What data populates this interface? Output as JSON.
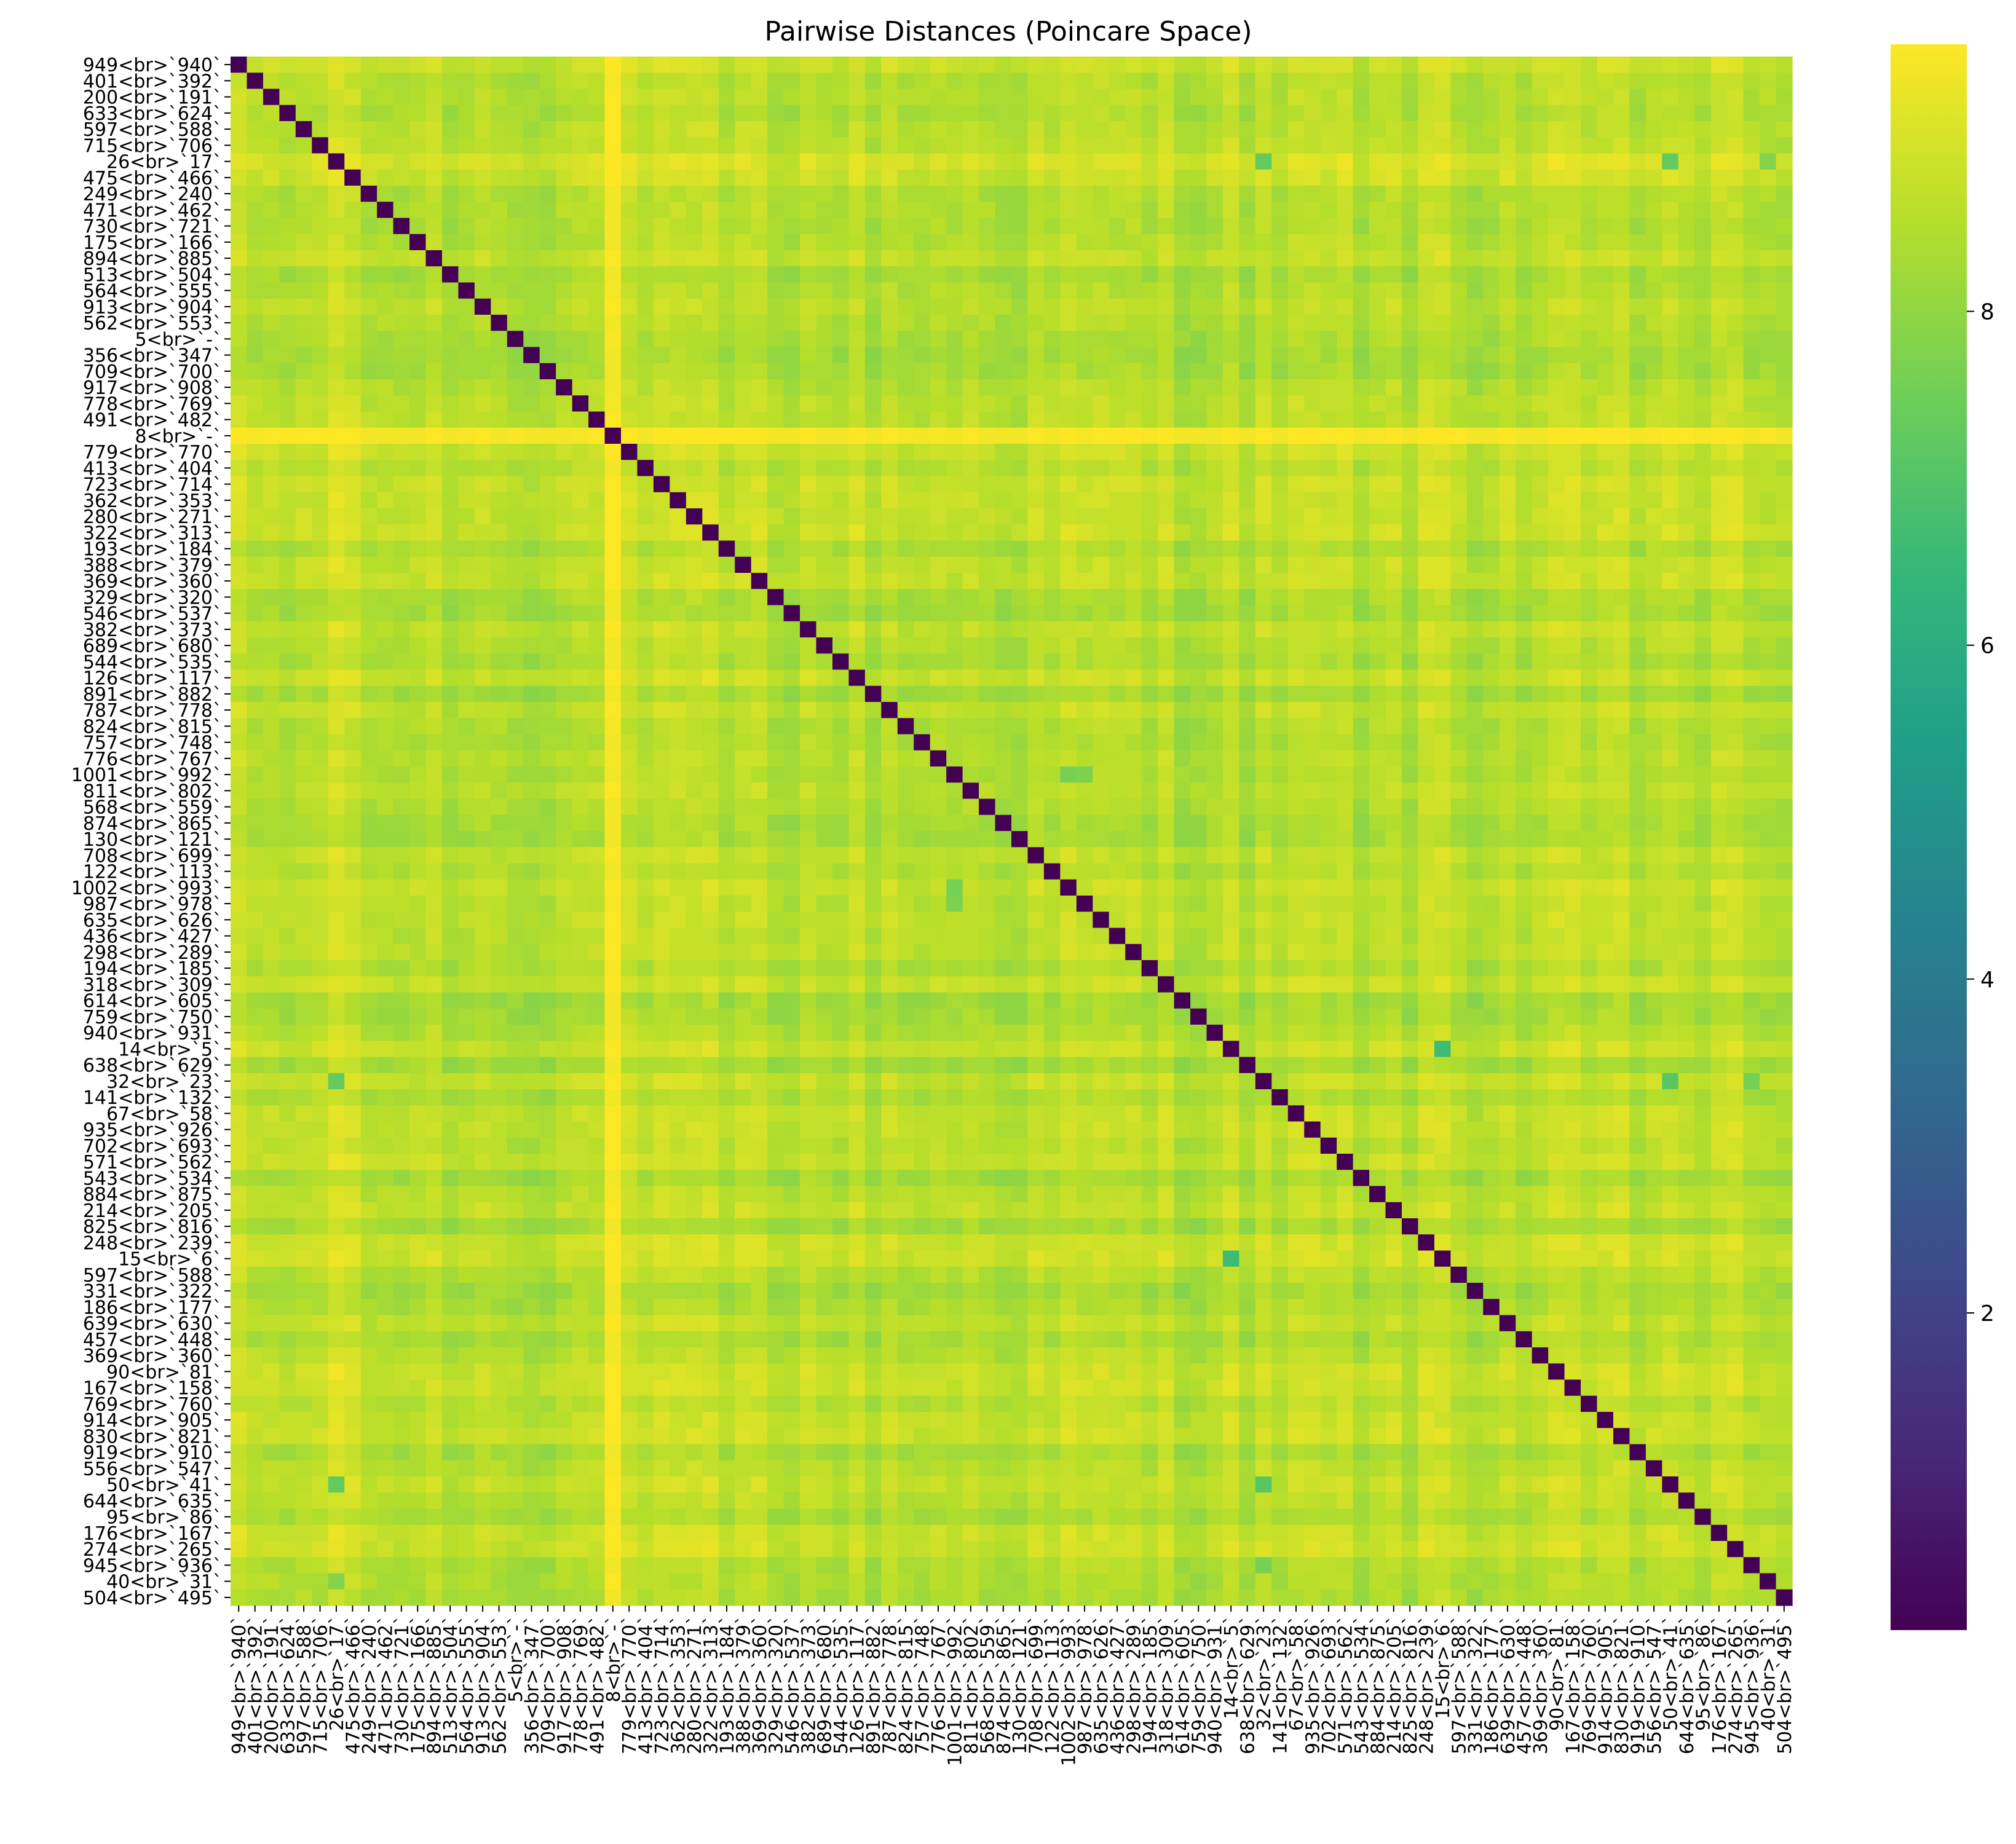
{
  "chart_data": {
    "type": "heatmap",
    "title": "Pairwise Distances (Poincare Space)",
    "xlabel": "",
    "ylabel": "",
    "colormap": "viridis",
    "colormap_stops": [
      "#440154",
      "#482878",
      "#3e4989",
      "#31688e",
      "#26828e",
      "#1f9e89",
      "#35b779",
      "#6ece58",
      "#b5de2b",
      "#fde725"
    ],
    "value_range": [
      0.1,
      9.6
    ],
    "colorbar_ticks": [
      2,
      4,
      6,
      8
    ],
    "labels": [
      "949<br>`940`",
      "401<br>`392`",
      "200<br>`191`",
      "633<br>`624`",
      "597<br>`588`",
      "715<br>`706`",
      "26<br>`17`",
      "475<br>`466`",
      "249<br>`240`",
      "471<br>`462`",
      "730<br>`721`",
      "175<br>`166`",
      "894<br>`885`",
      "513<br>`504`",
      "564<br>`555`",
      "913<br>`904`",
      "562<br>`553`",
      "5<br>`-`",
      "356<br>`347`",
      "709<br>`700`",
      "917<br>`908`",
      "778<br>`769`",
      "491<br>`482`",
      "8<br>`-`",
      "779<br>`770`",
      "413<br>`404`",
      "723<br>`714`",
      "362<br>`353`",
      "280<br>`271`",
      "322<br>`313`",
      "193<br>`184`",
      "388<br>`379`",
      "369<br>`360`",
      "329<br>`320`",
      "546<br>`537`",
      "382<br>`373`",
      "689<br>`680`",
      "544<br>`535`",
      "126<br>`117`",
      "891<br>`882`",
      "787<br>`778`",
      "824<br>`815`",
      "757<br>`748`",
      "776<br>`767`",
      "1001<br>`992`",
      "811<br>`802`",
      "568<br>`559`",
      "874<br>`865`",
      "130<br>`121`",
      "708<br>`699`",
      "122<br>`113`",
      "1002<br>`993`",
      "987<br>`978`",
      "635<br>`626`",
      "436<br>`427`",
      "298<br>`289`",
      "194<br>`185`",
      "318<br>`309`",
      "614<br>`605`",
      "759<br>`750`",
      "940<br>`931`",
      "14<br>`5`",
      "638<br>`629`",
      "32<br>`23`",
      "141<br>`132`",
      "67<br>`58`",
      "935<br>`926`",
      "702<br>`693`",
      "571<br>`562`",
      "543<br>`534`",
      "884<br>`875`",
      "214<br>`205`",
      "825<br>`816`",
      "248<br>`239`",
      "15<br>`6`",
      "597<br>`588`",
      "331<br>`322`",
      "186<br>`177`",
      "639<br>`630`",
      "457<br>`448`",
      "369<br>`360`",
      "90<br>`81`",
      "167<br>`158`",
      "769<br>`760`",
      "914<br>`905`",
      "830<br>`821`",
      "919<br>`910`",
      "556<br>`547`",
      "50<br>`41`",
      "644<br>`635`",
      "95<br>`86`",
      "176<br>`167`",
      "274<br>`265`",
      "945<br>`936`",
      "40<br>`31`",
      "504<br>`495`"
    ]
  }
}
